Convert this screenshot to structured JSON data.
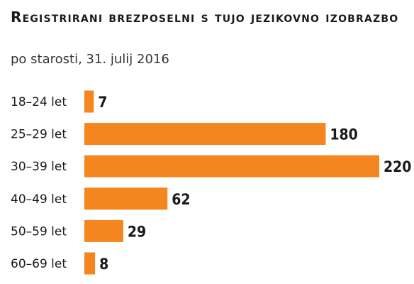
{
  "title": "Registrirani brezposelni s tujo jezikovno izobrazbo",
  "subtitle": "po starosti, 31. julij 2016",
  "colors": {
    "bar": "#f5861f",
    "text": "#1a1a1a"
  },
  "chart_data": {
    "type": "bar",
    "orientation": "horizontal",
    "title": "Registrirani brezposelni s tujo jezikovno izobrazbo",
    "subtitle": "po starosti, 31. julij 2016",
    "xlabel": "",
    "ylabel": "",
    "grid": false,
    "legend": "none",
    "categories": [
      "18–24 let",
      "25–29 let",
      "30–39 let",
      "40–49 let",
      "50–59 let",
      "60–69 let"
    ],
    "values": [
      7,
      180,
      220,
      62,
      29,
      8
    ],
    "xlim": [
      0,
      220
    ]
  }
}
